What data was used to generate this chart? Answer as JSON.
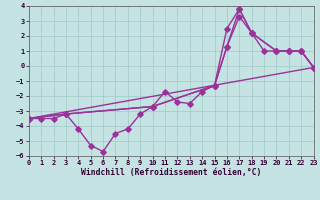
{
  "xlabel": "Windchill (Refroidissement éolien,°C)",
  "xlim": [
    0,
    23
  ],
  "ylim": [
    -6,
    4
  ],
  "xticks": [
    0,
    1,
    2,
    3,
    4,
    5,
    6,
    7,
    8,
    9,
    10,
    11,
    12,
    13,
    14,
    15,
    16,
    17,
    18,
    19,
    20,
    21,
    22,
    23
  ],
  "yticks": [
    -6,
    -5,
    -4,
    -3,
    -2,
    -1,
    0,
    1,
    2,
    3,
    4
  ],
  "bg_color": "#c5e3e3",
  "grid_color": "#a0c8c8",
  "line_color": "#993399",
  "series": [
    {
      "x": [
        0,
        1,
        2,
        3,
        4,
        5,
        6,
        7,
        8,
        9,
        10,
        11,
        12,
        13,
        14,
        15,
        16,
        17,
        18,
        19,
        20,
        21,
        22,
        23
      ],
      "y": [
        -3.5,
        -3.5,
        -3.5,
        -3.2,
        -4.2,
        -5.3,
        -5.7,
        -4.5,
        -4.2,
        -3.2,
        -2.7,
        -1.7,
        -2.4,
        -2.5,
        -1.7,
        -1.3,
        1.3,
        3.8,
        2.2,
        1.0,
        1.0,
        1.0,
        1.0,
        -0.1
      ]
    },
    {
      "x": [
        0,
        23
      ],
      "y": [
        -3.5,
        -0.1
      ]
    },
    {
      "x": [
        0,
        3,
        10,
        15,
        16,
        17,
        18,
        20,
        21,
        22,
        23
      ],
      "y": [
        -3.5,
        -3.2,
        -2.7,
        -1.3,
        1.3,
        3.3,
        2.2,
        1.0,
        1.0,
        1.0,
        -0.1
      ]
    },
    {
      "x": [
        0,
        3,
        10,
        15,
        16,
        17,
        18,
        20,
        21,
        22,
        23
      ],
      "y": [
        -3.5,
        -3.2,
        -2.7,
        -1.3,
        2.5,
        3.8,
        2.2,
        1.0,
        1.0,
        1.0,
        -0.1
      ]
    }
  ],
  "marker": "D",
  "markersize": 2.8,
  "linewidth": 1.0,
  "tick_fontsize": 5.0,
  "label_fontsize": 5.8
}
